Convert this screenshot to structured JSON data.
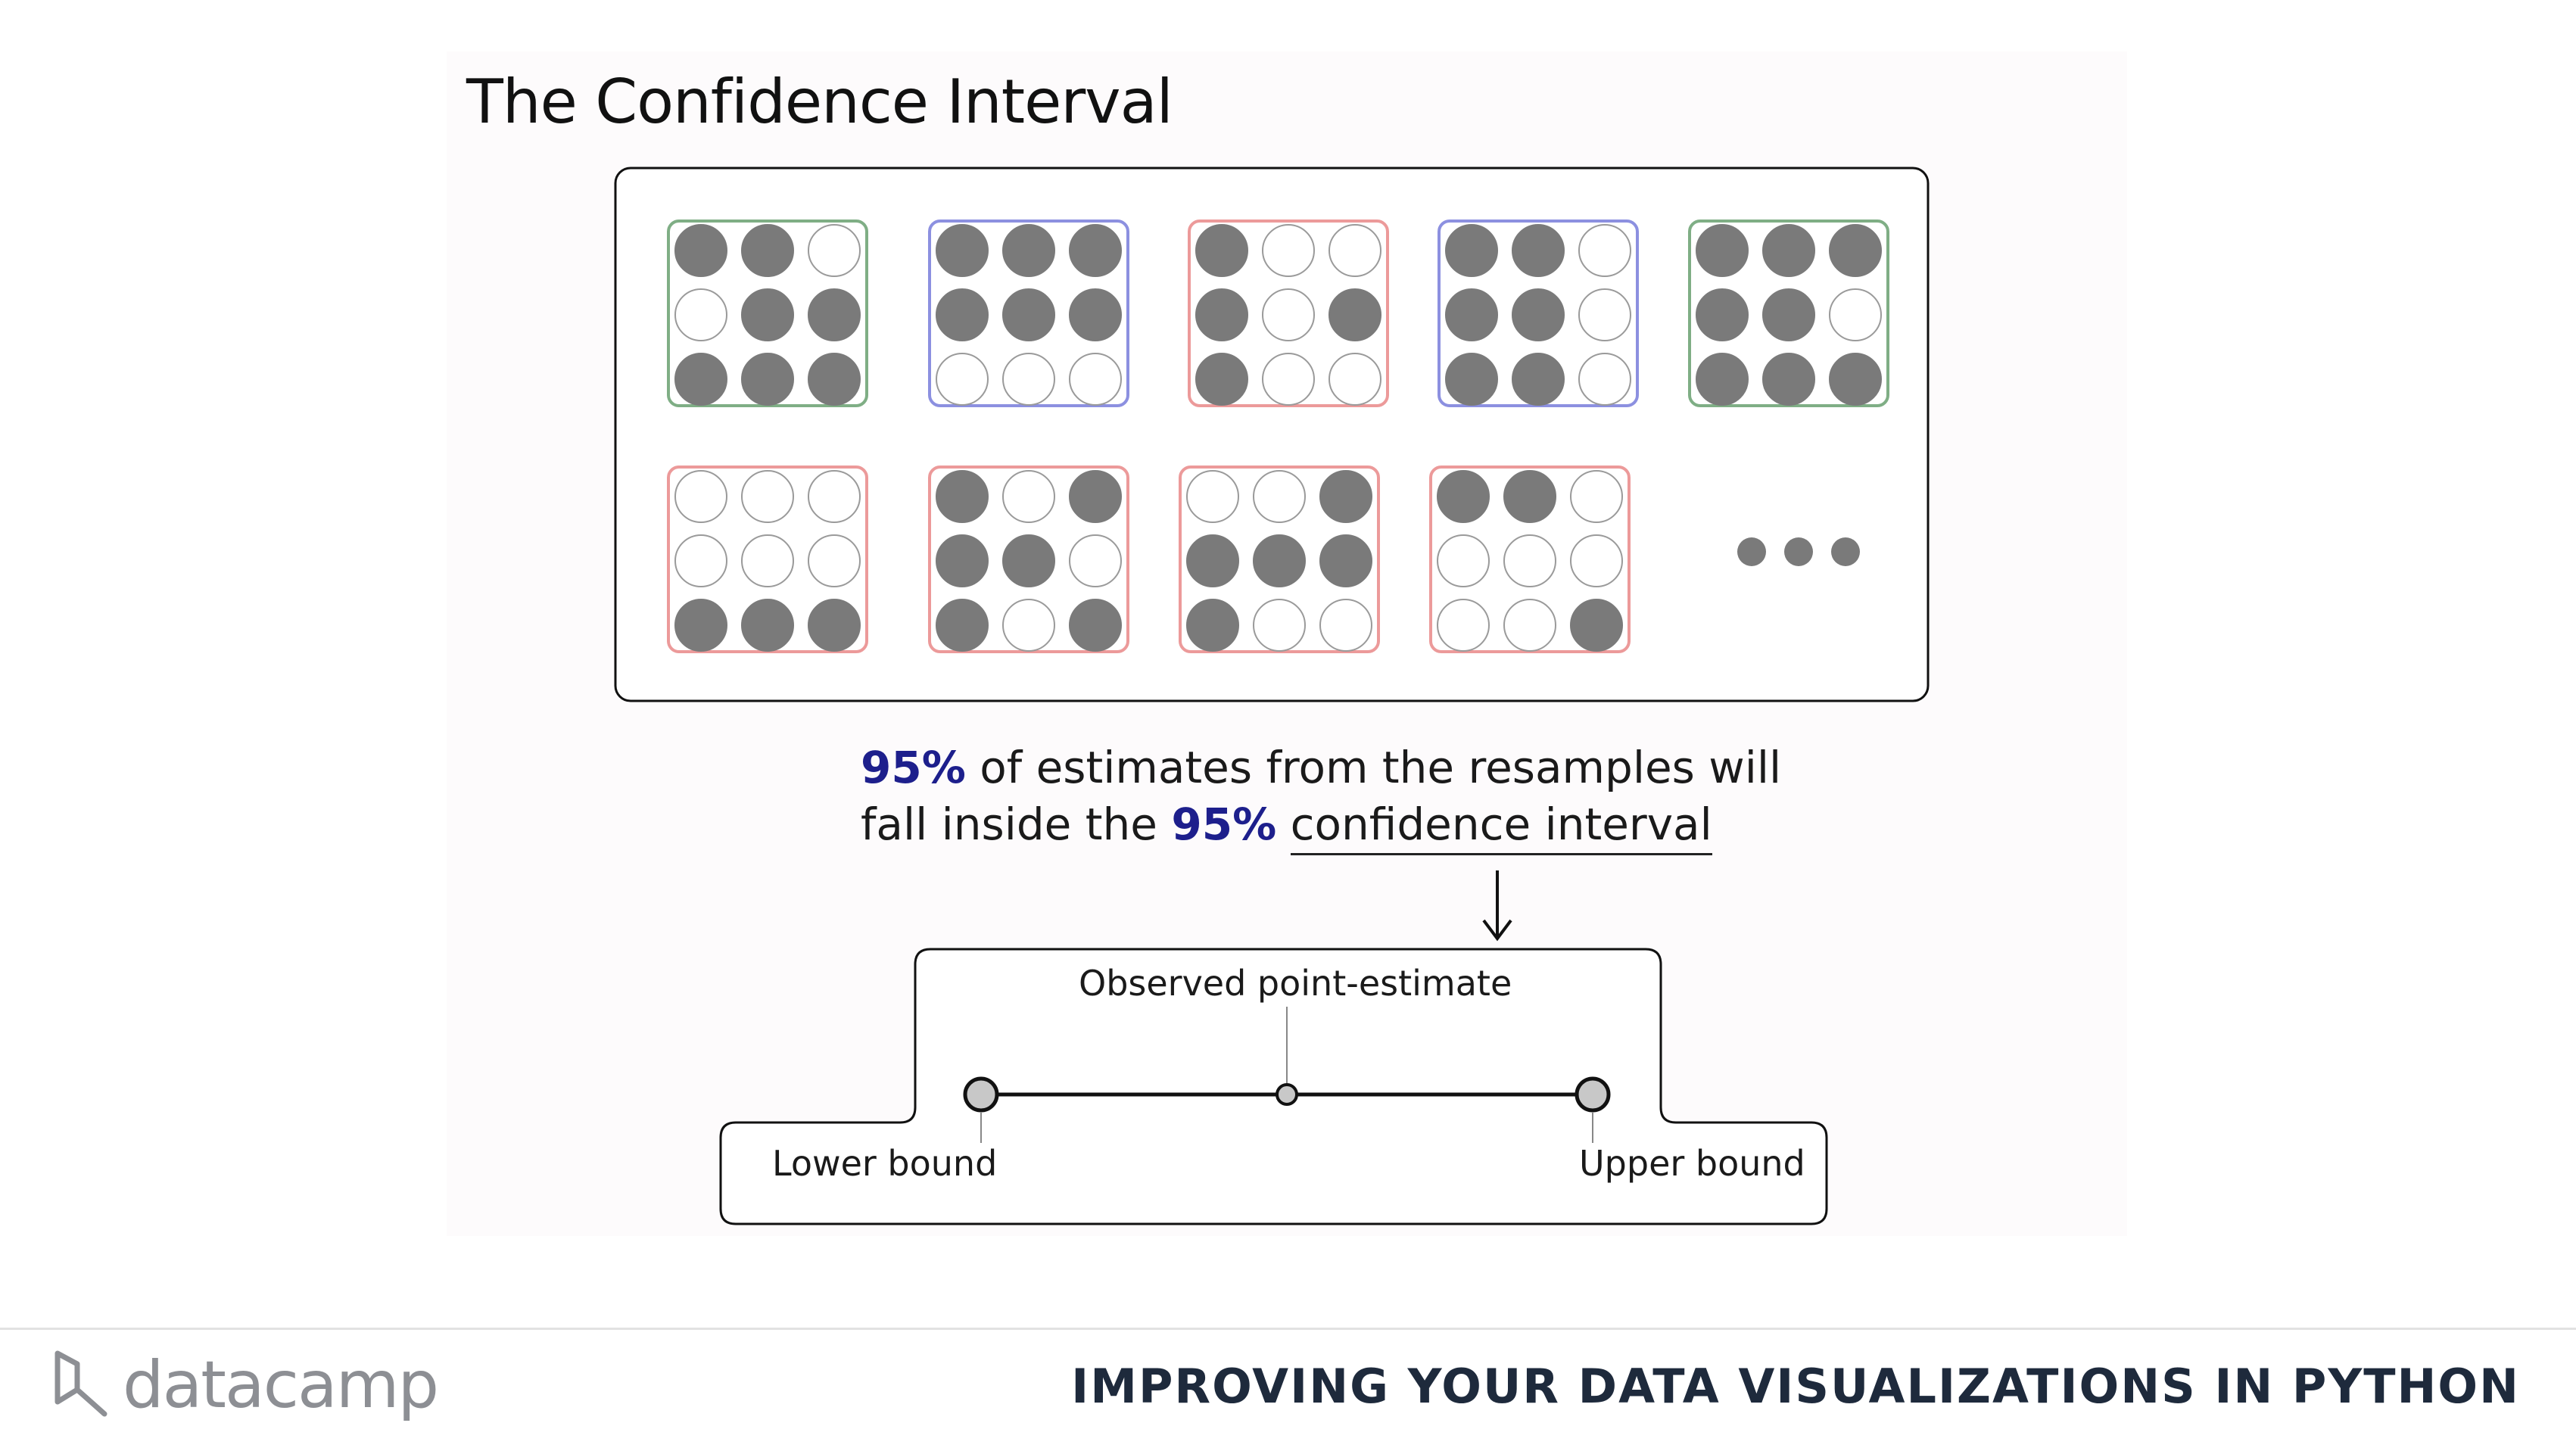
{
  "title": "The Confidence Interval",
  "samples_row1": [
    {
      "border": "green",
      "cells": [
        1,
        1,
        0,
        0,
        1,
        1,
        1,
        1,
        1
      ]
    },
    {
      "border": "blue",
      "cells": [
        1,
        1,
        1,
        1,
        1,
        1,
        0,
        0,
        0
      ]
    },
    {
      "border": "red",
      "cells": [
        1,
        0,
        0,
        1,
        0,
        1,
        1,
        0,
        0
      ]
    },
    {
      "border": "blue",
      "cells": [
        1,
        1,
        0,
        1,
        1,
        0,
        1,
        1,
        0
      ]
    },
    {
      "border": "green",
      "cells": [
        1,
        1,
        1,
        1,
        1,
        0,
        1,
        1,
        1
      ]
    }
  ],
  "samples_row2": [
    {
      "border": "red",
      "cells": [
        0,
        0,
        0,
        0,
        0,
        0,
        1,
        1,
        1
      ]
    },
    {
      "border": "red",
      "cells": [
        1,
        0,
        1,
        1,
        1,
        0,
        1,
        0,
        1
      ]
    },
    {
      "border": "red",
      "cells": [
        0,
        0,
        1,
        1,
        1,
        1,
        1,
        0,
        0
      ]
    },
    {
      "border": "red",
      "cells": [
        1,
        1,
        0,
        0,
        0,
        0,
        0,
        0,
        1
      ]
    }
  ],
  "colors": {
    "green": "#7fae85",
    "blue": "#8c90e0",
    "red": "#ec9a9a",
    "filled": "#7a7a7a",
    "percent": "#1d1f8c"
  },
  "caption": {
    "line1_pct": "95%",
    "line1_rest": " of estimates from the resamples will",
    "line2_pre": "fall inside the ",
    "line2_pct": "95%",
    "line2_underlined": "confidence interval"
  },
  "interval": {
    "observed_label": "Observed point-estimate",
    "lower_label": "Lower bound",
    "upper_label": "Upper bound"
  },
  "footer": {
    "logo_text": "datacamp",
    "course_title": "IMPROVING YOUR DATA VISUALIZATIONS IN PYTHON"
  }
}
